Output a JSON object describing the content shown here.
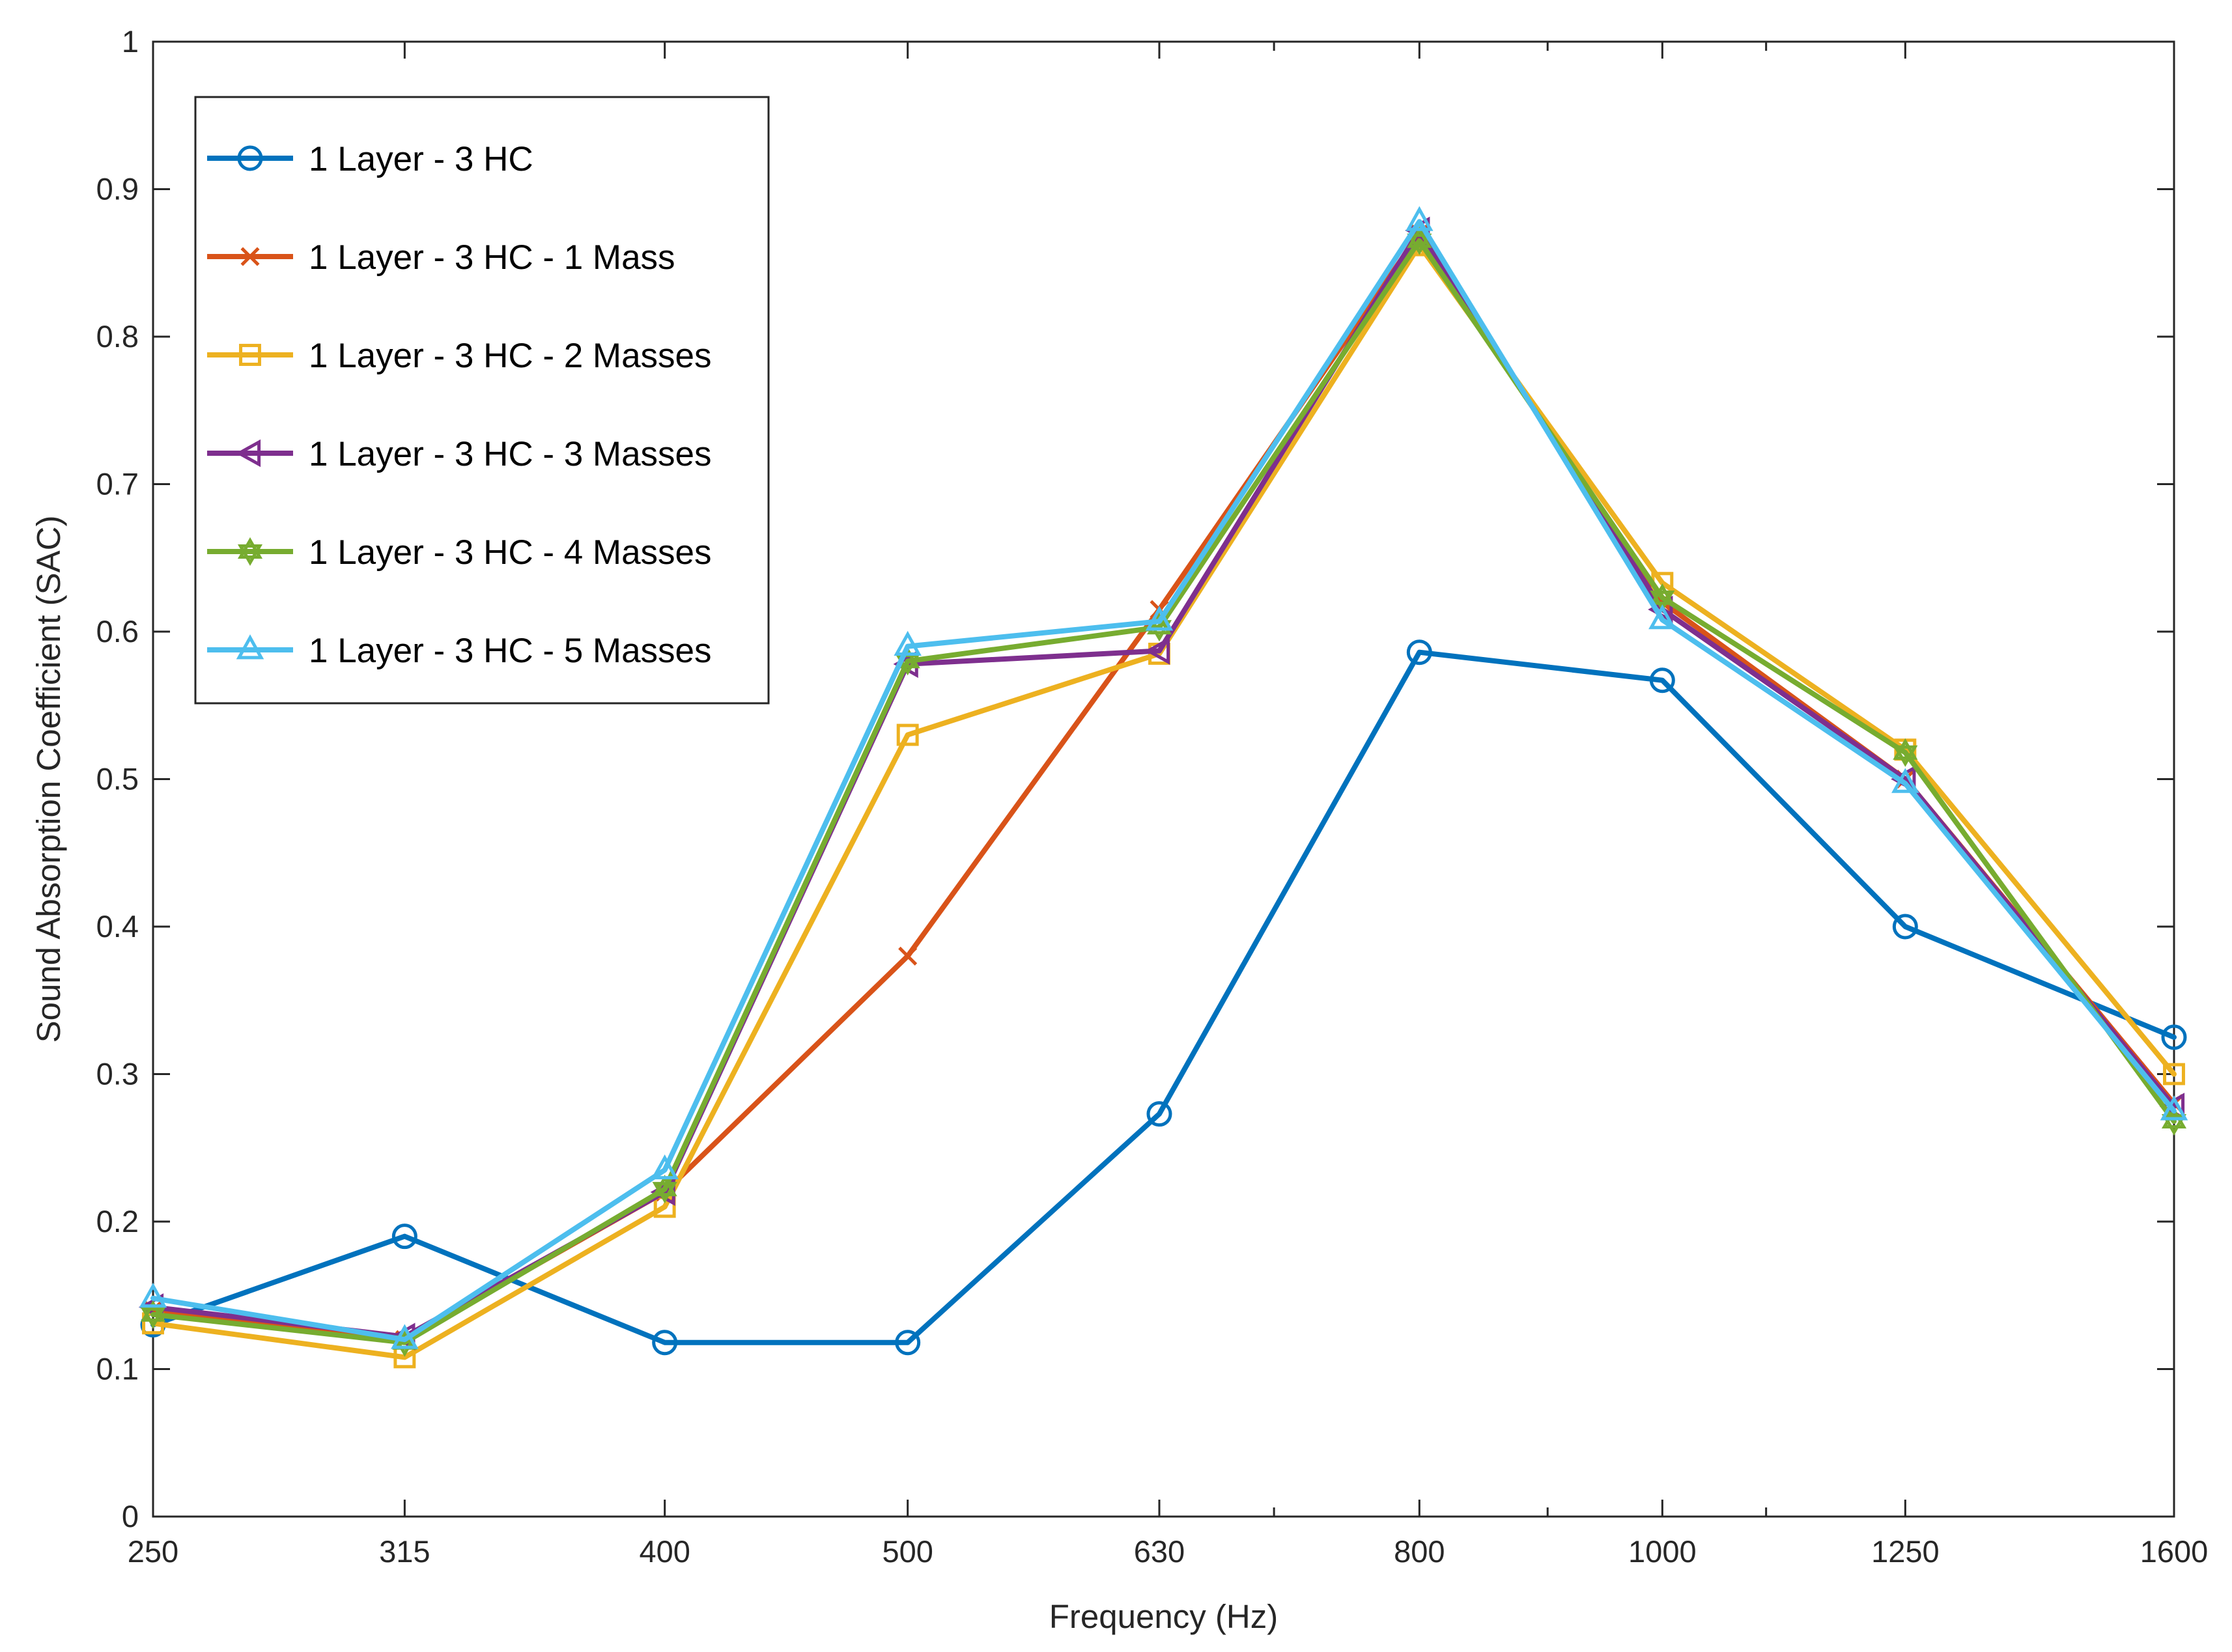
{
  "chart_data": {
    "type": "line",
    "title": "",
    "xlabel": "Frequency (Hz)",
    "ylabel": "Sound Absorption Coefficient (SAC)",
    "x_scale": "log",
    "xlim": [
      250,
      1600
    ],
    "ylim": [
      0,
      1
    ],
    "x_ticks": [
      250,
      315,
      400,
      500,
      630,
      800,
      1000,
      1250,
      1600
    ],
    "x_tick_labels": [
      "250",
      "315",
      "400",
      "500",
      "630",
      "800",
      "1000",
      "1250",
      "1600"
    ],
    "y_ticks": [
      0,
      0.1,
      0.2,
      0.3,
      0.4,
      0.5,
      0.6,
      0.7,
      0.8,
      0.9,
      1
    ],
    "y_tick_labels": [
      "0",
      "0.1",
      "0.2",
      "0.3",
      "0.4",
      "0.5",
      "0.6",
      "0.7",
      "0.8",
      "0.9",
      "1"
    ],
    "x_minor_ticks": [
      700,
      900,
      1100
    ],
    "grid": false,
    "legend_position": "top-left",
    "x": [
      250,
      315,
      400,
      500,
      630,
      800,
      1000,
      1250,
      1600
    ],
    "series": [
      {
        "name": "1 Layer - 3 HC",
        "color": "#0072BD",
        "marker": "circle",
        "values": [
          0.13,
          0.19,
          0.118,
          0.118,
          0.273,
          0.586,
          0.567,
          0.4,
          0.325
        ]
      },
      {
        "name": "1 Layer - 3 HC - 1 Mass",
        "color": "#D95319",
        "marker": "x",
        "values": [
          0.14,
          0.12,
          0.22,
          0.38,
          0.615,
          0.87,
          0.62,
          0.5,
          0.28
        ]
      },
      {
        "name": "1 Layer - 3 HC - 2 Masses",
        "color": "#EDB120",
        "marker": "square",
        "values": [
          0.131,
          0.108,
          0.21,
          0.53,
          0.585,
          0.862,
          0.633,
          0.52,
          0.3
        ]
      },
      {
        "name": "1 Layer - 3 HC - 3 Masses",
        "color": "#7E2F8E",
        "marker": "triangle-left",
        "values": [
          0.142,
          0.122,
          0.22,
          0.578,
          0.587,
          0.872,
          0.615,
          0.5,
          0.278
        ]
      },
      {
        "name": "1 Layer - 3 HC - 4 Masses",
        "color": "#77AC30",
        "marker": "hexagram",
        "values": [
          0.137,
          0.118,
          0.222,
          0.58,
          0.603,
          0.865,
          0.623,
          0.518,
          0.268
        ]
      },
      {
        "name": "1 Layer - 3 HC - 5 Masses",
        "color": "#4DBEEE",
        "marker": "triangle-up",
        "values": [
          0.148,
          0.12,
          0.235,
          0.59,
          0.607,
          0.878,
          0.608,
          0.497,
          0.275
        ]
      }
    ]
  }
}
